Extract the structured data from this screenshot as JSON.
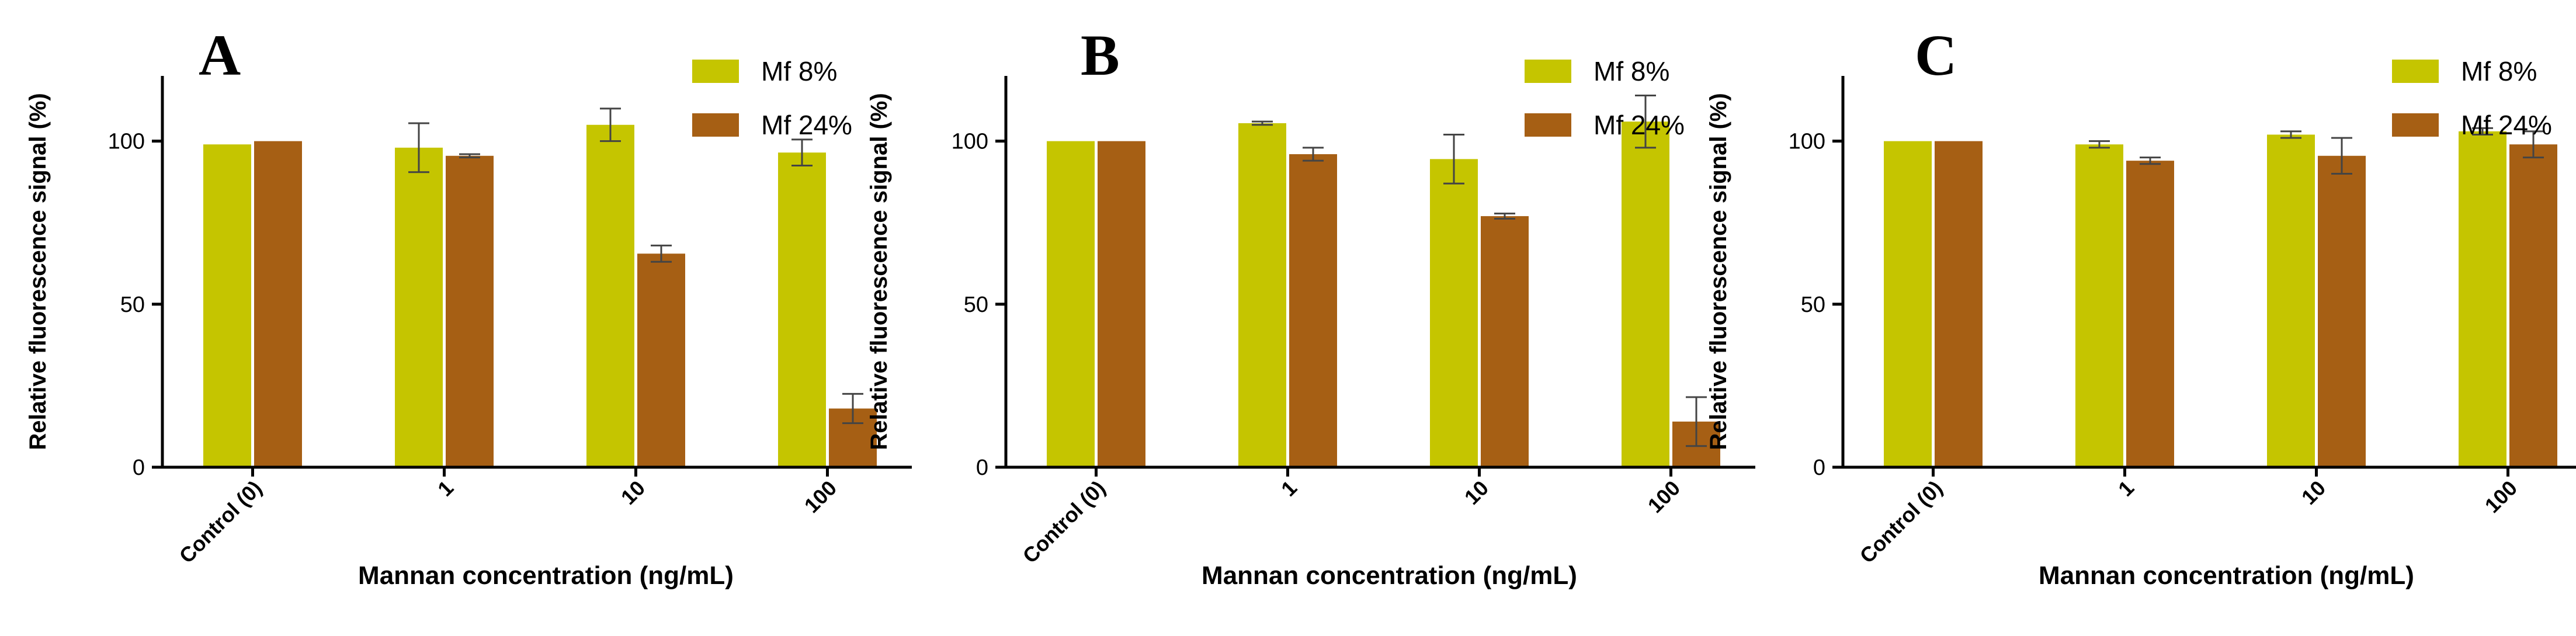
{
  "figure": {
    "series_colors": {
      "Mf 8%": "#c5c500",
      "Mf 24%": "#a65f14"
    },
    "axis_color": "#000000",
    "errorbar_color": "#444444"
  },
  "chart_data": [
    {
      "type": "bar",
      "panel": "A",
      "categories": [
        "Control (0)",
        "1",
        "10",
        "100"
      ],
      "series": [
        {
          "name": "Mf 8%",
          "values": [
            99,
            98,
            105,
            96.5
          ],
          "errors": [
            0,
            7.5,
            5,
            4
          ]
        },
        {
          "name": "Mf 24%",
          "values": [
            100,
            95.5,
            65.5,
            18
          ],
          "errors": [
            0,
            0.5,
            2.5,
            4.5
          ]
        }
      ],
      "xlabel": "Mannan concentration (ng/mL)",
      "ylabel": "Relative fluorescence signal (%)",
      "ylim": [
        0,
        120
      ],
      "yticks": [
        0,
        50,
        100
      ],
      "legend": "top-right"
    },
    {
      "type": "bar",
      "panel": "B",
      "categories": [
        "Control (0)",
        "1",
        "10",
        "100"
      ],
      "series": [
        {
          "name": "Mf 8%",
          "values": [
            100,
            105.5,
            94.5,
            106
          ],
          "errors": [
            0,
            0.5,
            7.5,
            8
          ]
        },
        {
          "name": "Mf 24%",
          "values": [
            100,
            96,
            77,
            14
          ],
          "errors": [
            0,
            2,
            0.8,
            7.5
          ]
        }
      ],
      "xlabel": "Mannan concentration (ng/mL)",
      "ylabel": "Relative fluorescence signal (%)",
      "ylim": [
        0,
        120
      ],
      "yticks": [
        0,
        50,
        100
      ],
      "legend": "top-right"
    },
    {
      "type": "bar",
      "panel": "C",
      "categories": [
        "Control (0)",
        "1",
        "10",
        "100"
      ],
      "series": [
        {
          "name": "Mf 8%",
          "values": [
            100,
            99,
            102,
            103
          ],
          "errors": [
            0,
            1,
            1,
            1
          ]
        },
        {
          "name": "Mf 24%",
          "values": [
            100,
            94,
            95.5,
            99
          ],
          "errors": [
            0,
            1,
            5.5,
            4
          ]
        }
      ],
      "xlabel": "Mannan concentration (ng/mL)",
      "ylabel": "Relative fluorescence signal (%)",
      "ylim": [
        0,
        120
      ],
      "yticks": [
        0,
        50,
        100
      ],
      "legend": "top-right"
    }
  ]
}
